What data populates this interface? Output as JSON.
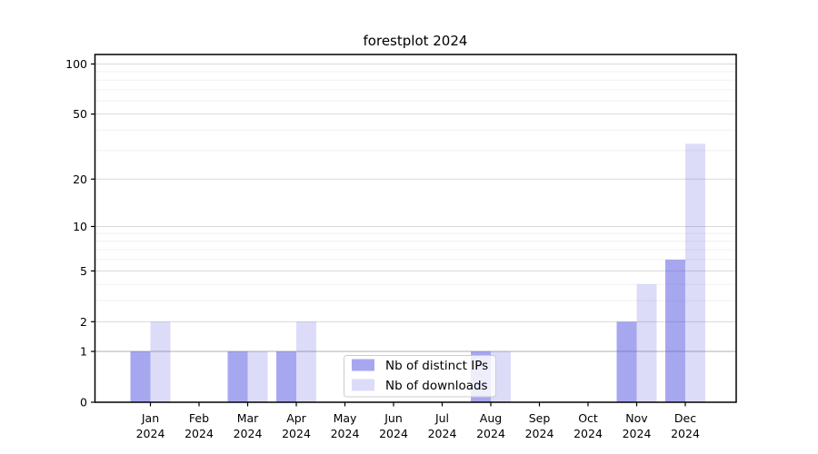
{
  "figure": {
    "background": "#ffffff"
  },
  "chart_data": {
    "type": "bar",
    "title": "forestplot 2024",
    "x_tick_labels": [
      [
        "Jan",
        "2024"
      ],
      [
        "Feb",
        "2024"
      ],
      [
        "Mar",
        "2024"
      ],
      [
        "Apr",
        "2024"
      ],
      [
        "May",
        "2024"
      ],
      [
        "Jun",
        "2024"
      ],
      [
        "Jul",
        "2024"
      ],
      [
        "Aug",
        "2024"
      ],
      [
        "Sep",
        "2024"
      ],
      [
        "Oct",
        "2024"
      ],
      [
        "Nov",
        "2024"
      ],
      [
        "Dec",
        "2024"
      ]
    ],
    "series": [
      {
        "name": "Nb of distinct IPs",
        "values": [
          1,
          0,
          1,
          1,
          0,
          0,
          0,
          1,
          0,
          0,
          2,
          6
        ],
        "color": "rgba(80,80,226,0.5)"
      },
      {
        "name": "Nb of downloads",
        "values": [
          2,
          0,
          1,
          2,
          0,
          0,
          0,
          1,
          0,
          0,
          4,
          33
        ],
        "color": "rgba(80,80,226,0.2)"
      }
    ],
    "y_scale": "log1p",
    "ylim": [
      0,
      114
    ],
    "y_major_ticks": [
      0,
      1,
      2,
      5,
      10,
      20,
      50,
      100
    ],
    "y_minor_gridlines": [
      3,
      4,
      6,
      7,
      8,
      9,
      30,
      40,
      60,
      70,
      80,
      90
    ],
    "grid": true,
    "legend_position": "lower center"
  },
  "colors": {
    "axis": "#000000",
    "grid_major": "#d9d9d9",
    "grid_minor": "#f0f0f0",
    "grid_emphasis_value": 1,
    "grid_emphasis_color": "#b0b0b0",
    "legend_border": "#cccccc",
    "legend_background": "rgba(255,255,255,0.8)"
  }
}
